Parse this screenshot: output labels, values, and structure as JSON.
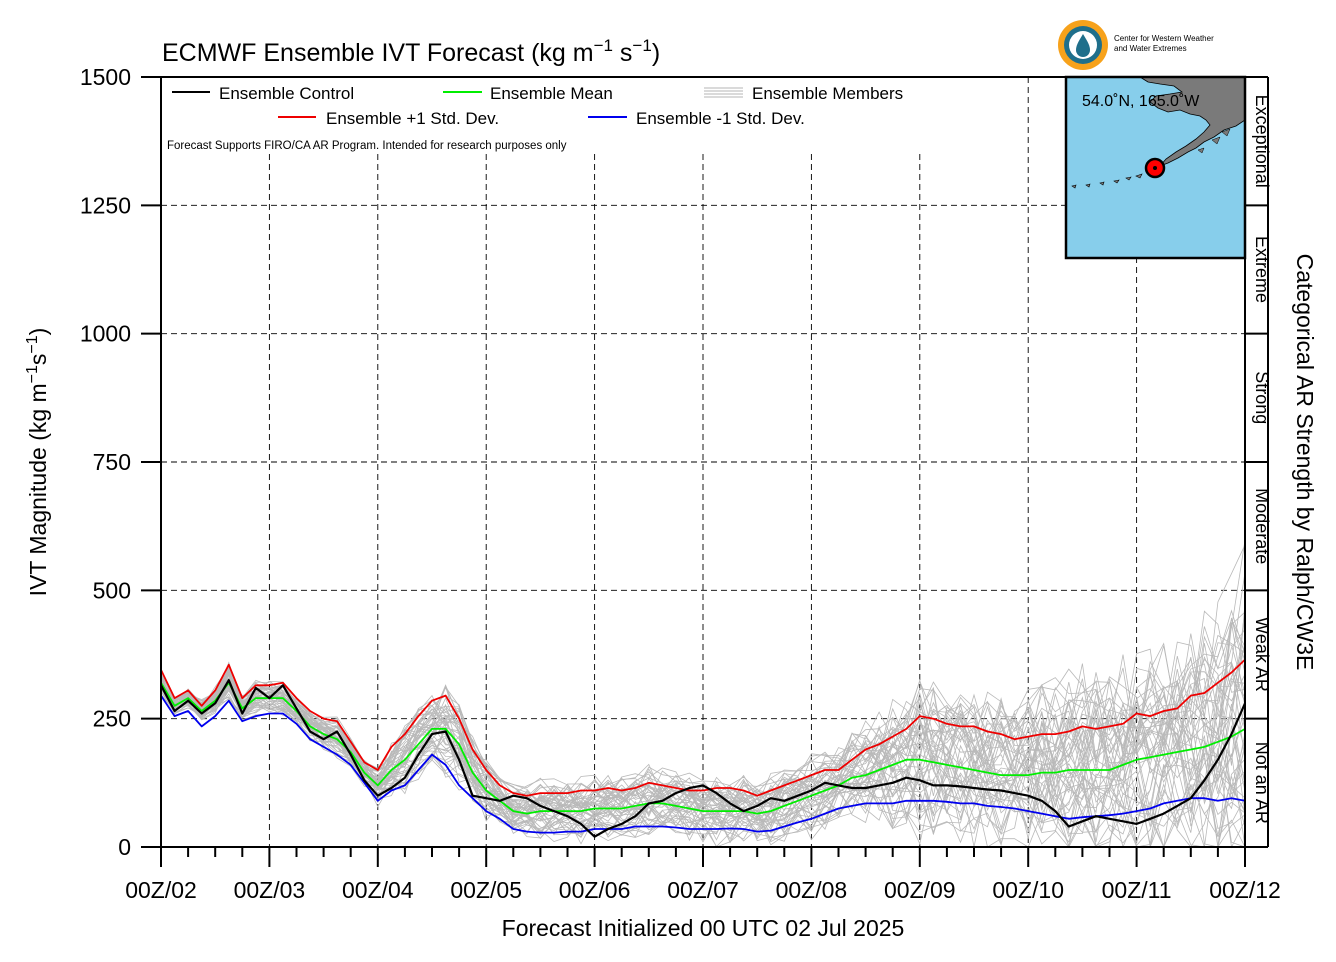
{
  "chart_data": {
    "type": "line",
    "title": "ECMWF Ensemble IVT Forecast (kg m",
    "title_sup1": "−1",
    "title_mid": " s",
    "title_sup2": "−1",
    "title_end": ")",
    "ylabel": "IVT Magnitude (kg m",
    "ylabel_sup1": "−1",
    "ylabel_mid": "s",
    "ylabel_sup2": "−1",
    "ylabel_end": ")",
    "xlabel": "Forecast Initialized 00 UTC 02 Jul 2025",
    "right_label": "Categorical AR Strength by Ralph/CW3E",
    "note": "Forecast Supports FIRO/CA AR Program. Intended for research purposes only",
    "logo_text": [
      "Center for Western Weather",
      "and Water Extremes"
    ],
    "ylim": [
      0,
      1500
    ],
    "yticks": [
      0,
      250,
      500,
      750,
      1000,
      1250,
      1500
    ],
    "ytick_labels": [
      "0",
      "250",
      "500",
      "750",
      "1000",
      "1250",
      "1500"
    ],
    "x_unit": "forecast hour",
    "xlim": [
      0,
      240
    ],
    "xticks": [
      0,
      24,
      48,
      72,
      96,
      120,
      144,
      168,
      192,
      216,
      240
    ],
    "xtick_labels": [
      "00Z/02",
      "00Z/03",
      "00Z/04",
      "00Z/05",
      "00Z/06",
      "00Z/07",
      "00Z/08",
      "00Z/09",
      "00Z/10",
      "00Z/11",
      "00Z/12"
    ],
    "grid": true,
    "legend": [
      {
        "label": "Ensemble Control",
        "color": "#000000"
      },
      {
        "label": "Ensemble Mean",
        "color": "#00ee00"
      },
      {
        "label": "Ensemble Members",
        "color": "#b4b4b4"
      },
      {
        "label": "Ensemble +1 Std. Dev.",
        "color": "#ee0000"
      },
      {
        "label": "Ensemble -1 Std. Dev.",
        "color": "#0000ee"
      }
    ],
    "legend_placement": "top-left",
    "categories_ar": [
      {
        "label": "Not an AR",
        "range": [
          0,
          250
        ]
      },
      {
        "label": "Weak AR",
        "range": [
          250,
          500
        ]
      },
      {
        "label": "Moderate",
        "range": [
          500,
          750
        ]
      },
      {
        "label": "Strong",
        "range": [
          750,
          1000
        ]
      },
      {
        "label": "Extreme",
        "range": [
          1000,
          1250
        ]
      },
      {
        "label": "Exceptional",
        "range": [
          1250,
          1500
        ]
      }
    ],
    "inset_map": {
      "location_label": "54.0˚N, 165.0˚W",
      "lat": 54.0,
      "lon": -165.0
    },
    "x": [
      0,
      3,
      6,
      9,
      12,
      15,
      18,
      21,
      24,
      27,
      30,
      33,
      36,
      39,
      42,
      45,
      48,
      51,
      54,
      57,
      60,
      63,
      66,
      69,
      72,
      75,
      78,
      81,
      84,
      87,
      90,
      93,
      96,
      99,
      102,
      105,
      108,
      111,
      114,
      117,
      120,
      123,
      126,
      129,
      132,
      135,
      138,
      141,
      144,
      147,
      150,
      153,
      156,
      159,
      162,
      165,
      168,
      171,
      174,
      177,
      180,
      183,
      186,
      189,
      192,
      195,
      198,
      201,
      204,
      207,
      210,
      213,
      216,
      219,
      222,
      225,
      228,
      231,
      234,
      237,
      240
    ],
    "series": [
      {
        "name": "Ensemble Control",
        "color": "#000000",
        "values": [
          315,
          265,
          285,
          260,
          280,
          325,
          260,
          310,
          290,
          315,
          270,
          225,
          210,
          225,
          180,
          130,
          100,
          115,
          135,
          180,
          220,
          225,
          170,
          100,
          95,
          90,
          100,
          95,
          80,
          70,
          60,
          45,
          20,
          35,
          45,
          60,
          85,
          90,
          105,
          115,
          120,
          105,
          85,
          70,
          80,
          95,
          90,
          100,
          110,
          125,
          120,
          115,
          115,
          120,
          125,
          135,
          130,
          120,
          120,
          118,
          115,
          112,
          110,
          105,
          100,
          90,
          70,
          40,
          50,
          60,
          55,
          50,
          45,
          55,
          65,
          80,
          95,
          130,
          170,
          220,
          280
        ]
      },
      {
        "name": "Ensemble Mean",
        "color": "#00ee00",
        "values": [
          320,
          275,
          290,
          265,
          285,
          320,
          270,
          290,
          290,
          290,
          265,
          235,
          220,
          210,
          185,
          145,
          120,
          150,
          170,
          200,
          230,
          230,
          200,
          145,
          110,
          90,
          70,
          65,
          70,
          70,
          70,
          70,
          75,
          75,
          75,
          80,
          85,
          85,
          80,
          75,
          70,
          70,
          70,
          70,
          65,
          70,
          80,
          90,
          100,
          110,
          120,
          135,
          140,
          150,
          160,
          170,
          170,
          165,
          160,
          155,
          150,
          145,
          140,
          140,
          140,
          145,
          145,
          150,
          150,
          150,
          150,
          160,
          170,
          175,
          180,
          185,
          190,
          195,
          205,
          215,
          230
        ]
      },
      {
        "name": "Ensemble +1 Std. Dev.",
        "color": "#ee0000",
        "values": [
          345,
          290,
          305,
          275,
          305,
          355,
          290,
          315,
          315,
          320,
          290,
          265,
          250,
          245,
          205,
          165,
          150,
          195,
          220,
          255,
          285,
          295,
          250,
          190,
          150,
          120,
          105,
          100,
          105,
          105,
          105,
          110,
          110,
          115,
          110,
          115,
          125,
          120,
          115,
          110,
          110,
          115,
          115,
          110,
          100,
          110,
          120,
          130,
          140,
          150,
          150,
          170,
          190,
          200,
          215,
          230,
          255,
          250,
          240,
          235,
          235,
          225,
          220,
          210,
          215,
          220,
          220,
          225,
          235,
          230,
          235,
          240,
          260,
          255,
          265,
          270,
          295,
          300,
          320,
          340,
          365
        ]
      },
      {
        "name": "Ensemble -1 Std. Dev.",
        "color": "#0000ee",
        "values": [
          295,
          255,
          265,
          235,
          255,
          285,
          245,
          255,
          260,
          260,
          240,
          210,
          195,
          180,
          160,
          125,
          90,
          110,
          120,
          150,
          180,
          160,
          120,
          95,
          70,
          55,
          35,
          30,
          28,
          28,
          30,
          30,
          35,
          35,
          35,
          40,
          40,
          40,
          38,
          35,
          35,
          35,
          36,
          35,
          30,
          32,
          40,
          48,
          55,
          65,
          75,
          80,
          85,
          85,
          85,
          90,
          90,
          90,
          88,
          85,
          85,
          80,
          78,
          75,
          70,
          65,
          60,
          55,
          58,
          60,
          62,
          65,
          70,
          75,
          85,
          90,
          95,
          95,
          90,
          95,
          90
        ]
      }
    ]
  }
}
